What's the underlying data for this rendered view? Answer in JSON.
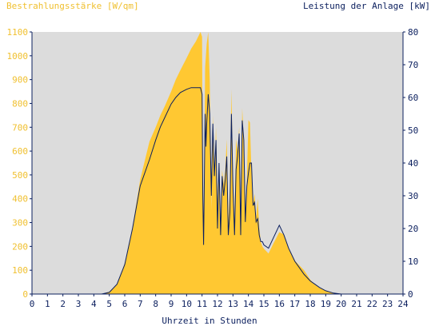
{
  "chart_data": {
    "type": "area",
    "left_axis_title": "Bestrahlungsstärke [W/qm]",
    "right_axis_title": "Leistung der Anlage [kW]",
    "xlabel": "Uhrzeit in Stunden",
    "xlim": [
      0,
      24
    ],
    "x_ticks": [
      "0",
      "1",
      "2",
      "3",
      "4",
      "5",
      "6",
      "7",
      "8",
      "9",
      "10",
      "11",
      "12",
      "13",
      "14",
      "15",
      "16",
      "17",
      "18",
      "19",
      "20",
      "21",
      "22",
      "23",
      "24"
    ],
    "y_left_lim": [
      0,
      1100
    ],
    "y_left_ticks": [
      "0",
      "100",
      "200",
      "300",
      "400",
      "500",
      "600",
      "700",
      "800",
      "900",
      "1000",
      "1100"
    ],
    "y_right_lim": [
      0,
      80
    ],
    "y_right_ticks": [
      "0",
      "10",
      "20",
      "30",
      "40",
      "50",
      "60",
      "70",
      "80"
    ],
    "grid": false,
    "colors": {
      "plot_bg": "#dcdcdc",
      "irradiance": "#ffc832",
      "power": "#0b1f5e",
      "left_axis_text": "#f0c030",
      "right_axis_text": "#0b1f5e",
      "axis": "#0b1f5e"
    },
    "series": [
      {
        "name": "Bestrahlungsstärke [W/qm]",
        "axis": "left",
        "type": "area",
        "x": [
          0,
          4.5,
          5,
          5.5,
          6,
          6.5,
          7,
          7.3,
          7.6,
          8,
          8.3,
          8.6,
          9,
          9.3,
          9.6,
          10,
          10.3,
          10.6,
          10.9,
          11,
          11.05,
          11.1,
          11.2,
          11.25,
          11.3,
          11.4,
          11.5,
          11.6,
          11.7,
          11.8,
          11.9,
          12,
          12.1,
          12.2,
          12.3,
          12.4,
          12.5,
          12.6,
          12.7,
          12.8,
          12.9,
          13,
          13.1,
          13.2,
          13.3,
          13.4,
          13.5,
          13.6,
          13.7,
          13.8,
          13.9,
          14,
          14.1,
          14.2,
          14.3,
          14.4,
          14.5,
          14.6,
          14.7,
          14.8,
          14.9,
          15,
          15.3,
          15.6,
          16,
          16.3,
          16.6,
          17,
          17.3,
          17.6,
          18,
          18.3,
          18.6,
          19,
          19.5,
          20,
          24
        ],
        "y": [
          0,
          0,
          10,
          40,
          130,
          280,
          480,
          560,
          640,
          700,
          750,
          790,
          850,
          900,
          940,
          990,
          1030,
          1060,
          1100,
          1080,
          400,
          200,
          950,
          1000,
          1050,
          1100,
          900,
          350,
          750,
          500,
          700,
          380,
          550,
          300,
          520,
          460,
          520,
          650,
          300,
          450,
          860,
          500,
          300,
          650,
          600,
          700,
          250,
          780,
          650,
          300,
          480,
          730,
          720,
          500,
          380,
          420,
          320,
          400,
          280,
          220,
          200,
          190,
          170,
          210,
          260,
          250,
          190,
          140,
          120,
          100,
          60,
          40,
          25,
          15,
          5,
          0,
          0
        ]
      },
      {
        "name": "Leistung der Anlage [kW]",
        "axis": "right",
        "type": "line",
        "x": [
          0,
          4.5,
          5,
          5.5,
          6,
          6.5,
          7,
          7.3,
          7.6,
          8,
          8.3,
          8.6,
          9,
          9.3,
          9.6,
          10,
          10.3,
          10.6,
          10.9,
          11,
          11.05,
          11.1,
          11.2,
          11.25,
          11.3,
          11.4,
          11.5,
          11.6,
          11.7,
          11.8,
          11.9,
          12,
          12.1,
          12.2,
          12.3,
          12.4,
          12.5,
          12.6,
          12.7,
          12.8,
          12.9,
          13,
          13.1,
          13.2,
          13.3,
          13.4,
          13.5,
          13.6,
          13.7,
          13.8,
          13.9,
          14,
          14.1,
          14.2,
          14.3,
          14.4,
          14.5,
          14.6,
          14.7,
          14.8,
          14.9,
          15,
          15.3,
          15.6,
          16,
          16.3,
          16.6,
          17,
          17.3,
          17.6,
          18,
          18.3,
          18.6,
          19,
          19.5,
          20,
          24
        ],
        "y": [
          0,
          0,
          0.5,
          3,
          9,
          20,
          33,
          37,
          41,
          47,
          51,
          54,
          58,
          60,
          61.5,
          62.5,
          63,
          63,
          63,
          61,
          30,
          15,
          55,
          45,
          52,
          61,
          55,
          30,
          52,
          36,
          47,
          20,
          40,
          18,
          36,
          30,
          35,
          42,
          18,
          25,
          55,
          33,
          18,
          38,
          42,
          49,
          18,
          53,
          47,
          22,
          33,
          37,
          40,
          40,
          27,
          28,
          22,
          23,
          18,
          16,
          16,
          15,
          14,
          17,
          21,
          18,
          14,
          10,
          8,
          6,
          4,
          3,
          2,
          1,
          0.3,
          0,
          0
        ]
      }
    ]
  }
}
